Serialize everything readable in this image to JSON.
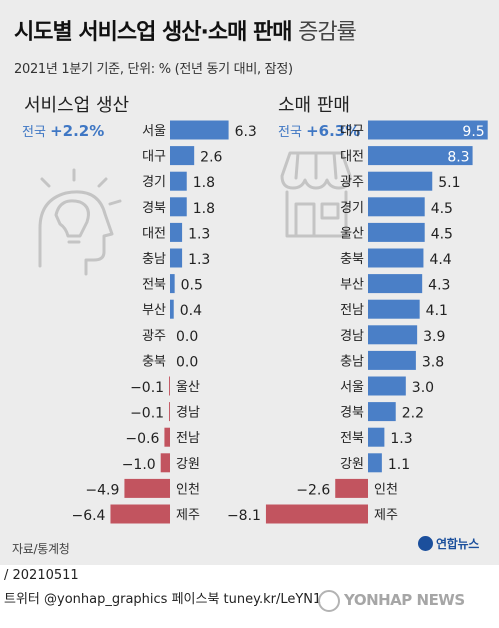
{
  "title": {
    "main": "시도별 서비스업 생산·소매 판매",
    "suffix": "증감률"
  },
  "subtitle": "2021년 1분기 기준, 단위: % (전년 동기 대비, 잠정)",
  "source": "자료/통계청",
  "logo_text": "연합뉴스",
  "footer": {
    "date": "/ 20210511",
    "social": "트위터 @yonhap_graphics  페이스북 tuney.kr/LeYN1",
    "brand": "YONHAP NEWS"
  },
  "colors": {
    "positive": "#4a7fc7",
    "negative": "#c2545f",
    "total_label": "#3f77c4",
    "icon": "#c4c4c4"
  },
  "chart_data": [
    {
      "type": "bar",
      "title": "서비스업 생산",
      "total_label": "전국",
      "total_value": "+2.2%",
      "icon": "lightbulb-head-icon",
      "categories": [
        "서울",
        "대구",
        "경기",
        "경북",
        "대전",
        "충남",
        "전북",
        "부산",
        "광주",
        "충북",
        "울산",
        "경남",
        "전남",
        "강원",
        "인천",
        "제주"
      ],
      "values": [
        6.3,
        2.6,
        1.8,
        1.8,
        1.3,
        1.3,
        0.5,
        0.4,
        0.0,
        0.0,
        -0.1,
        -0.1,
        -0.6,
        -1.0,
        -4.9,
        -6.4
      ]
    },
    {
      "type": "bar",
      "title": "소매 판매",
      "total_label": "전국",
      "total_value": "+6.3%",
      "icon": "storefront-icon",
      "categories": [
        "대구",
        "대전",
        "광주",
        "경기",
        "울산",
        "충북",
        "부산",
        "전남",
        "경남",
        "충남",
        "서울",
        "경북",
        "전북",
        "강원",
        "인천",
        "제주"
      ],
      "values": [
        9.5,
        8.3,
        5.1,
        4.5,
        4.5,
        4.4,
        4.3,
        4.1,
        3.9,
        3.8,
        3.0,
        2.2,
        1.3,
        1.1,
        -2.6,
        -8.1
      ]
    }
  ]
}
